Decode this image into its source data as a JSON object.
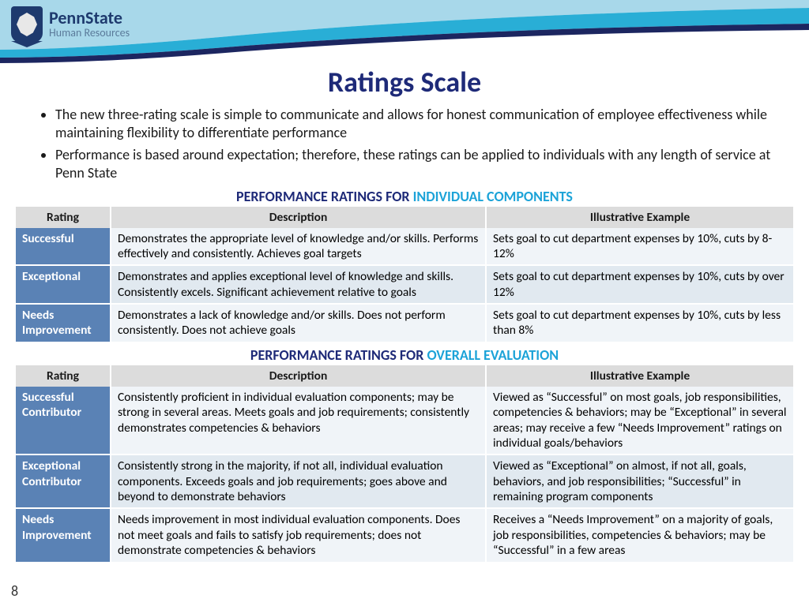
{
  "logo": {
    "line1": "PennState",
    "line2": "Human Resources"
  },
  "title": "Ratings Scale",
  "bullets": [
    "The new three-rating scale is simple to communicate and allows for honest communication of employee effectiveness while maintaining flexibility to differentiate performance",
    "Performance is based around expectation; therefore, these ratings can be applied to individuals with any length of service at Penn State"
  ],
  "sections": [
    {
      "heading_p1": "PERFORMANCE RATINGS FOR ",
      "heading_p2": "INDIVIDUAL COMPONENTS",
      "columns": [
        "Rating",
        "Description",
        "Illustrative Example"
      ],
      "col_widths": [
        "120px",
        "475px",
        "auto"
      ],
      "rows": [
        {
          "rating": "Successful",
          "desc": "Demonstrates the appropriate level of knowledge and/or skills. Performs effectively and consistently. Achieves goal targets",
          "example": "Sets goal to cut department expenses by 10%, cuts by 8-12%"
        },
        {
          "rating": "Exceptional",
          "desc": "Demonstrates and applies exceptional level of knowledge and skills. Consistently excels. Significant achievement relative to goals",
          "example": "Sets goal to cut department expenses by 10%, cuts by over 12%"
        },
        {
          "rating": "Needs Improvement",
          "desc": "Demonstrates a lack of knowledge and/or skills.  Does not perform consistently. Does not achieve goals",
          "example": "Sets goal to cut department expenses by 10%, cuts by less than 8%"
        }
      ]
    },
    {
      "heading_p1": "PERFORMANCE RATINGS FOR ",
      "heading_p2": "OVERALL EVALUATION",
      "columns": [
        "Rating",
        "Description",
        "Illustrative Example"
      ],
      "col_widths": [
        "120px",
        "475px",
        "auto"
      ],
      "rows": [
        {
          "rating": "Successful Contributor",
          "desc": "Consistently proficient in individual evaluation components; may be strong in several areas.  Meets goals and job requirements; consistently demonstrates competencies & behaviors",
          "example": "Viewed as “Successful” on most goals, job responsibilities, competencies & behaviors; may be “Exceptional” in several areas; may receive a few “Needs Improvement” ratings on individual goals/behaviors"
        },
        {
          "rating": "Exceptional Contributor",
          "desc": "Consistently strong in the majority, if not all, individual evaluation components.  Exceeds goals and job requirements; goes above and beyond to demonstrate behaviors",
          "example": "Viewed as “Exceptional” on almost, if not all, goals, behaviors, and job responsibilities; “Successful” in remaining program components"
        },
        {
          "rating": "Needs Improvement",
          "desc": "Needs improvement in most individual evaluation components.  Does not meet goals and fails to satisfy job requirements; does not demonstrate competencies & behaviors",
          "example": "Receives a “Needs Improvement” on a majority of goals, job responsibilities, competencies & behaviors; may be “Successful” in a few areas"
        }
      ]
    }
  ],
  "page_number": "8",
  "colors": {
    "title": "#1e2a78",
    "accent_cyan": "#1ca3d8",
    "header_cell": "#dcdcdc",
    "rating_cell": "#5a82b5",
    "row_even": "#f0f4f8",
    "row_odd": "#e1e9f0",
    "swoosh_light": "#a8d8ea",
    "swoosh_mid": "#29aed6",
    "swoosh_dark": "#1c2660"
  }
}
